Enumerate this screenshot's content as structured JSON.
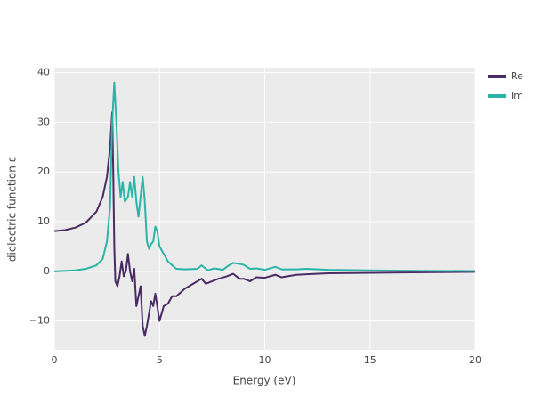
{
  "chart_data": {
    "type": "line",
    "xlabel": "Energy (eV)",
    "ylabel": "dielectric function ε",
    "xlim": [
      0,
      20
    ],
    "ylim": [
      -15.8,
      41
    ],
    "xticks": [
      0,
      5,
      10,
      15,
      20
    ],
    "yticks": [
      {
        "value": -10,
        "label": "−10"
      },
      0,
      10,
      20,
      30,
      40
    ],
    "grid": true,
    "legend": "top-right-outside",
    "series": [
      {
        "name": "Re",
        "color": "#4a2b63",
        "x": [
          0,
          0.5,
          1,
          1.5,
          2,
          2.3,
          2.5,
          2.65,
          2.75,
          2.8,
          2.85,
          2.9,
          3.0,
          3.1,
          3.2,
          3.3,
          3.4,
          3.5,
          3.6,
          3.7,
          3.8,
          3.9,
          4.0,
          4.1,
          4.2,
          4.3,
          4.4,
          4.6,
          4.7,
          4.8,
          5.0,
          5.2,
          5.4,
          5.6,
          5.8,
          6.2,
          6.6,
          7.0,
          7.2,
          7.5,
          7.8,
          8.2,
          8.5,
          8.8,
          9.0,
          9.3,
          9.6,
          10,
          10.5,
          10.8,
          11.5,
          12,
          13,
          15,
          17,
          20
        ],
        "values": [
          8.1,
          8.3,
          8.8,
          9.8,
          12,
          15,
          19,
          25,
          32,
          20,
          5,
          -2,
          -3,
          -1,
          2,
          -1,
          0,
          3.5,
          0,
          -2,
          0.5,
          -7,
          -5,
          -3,
          -11,
          -13,
          -11,
          -6,
          -7,
          -4.5,
          -10,
          -7,
          -6.5,
          -5,
          -5,
          -3.5,
          -2.5,
          -1.5,
          -2.5,
          -2,
          -1.5,
          -1,
          -0.5,
          -1.5,
          -1.5,
          -2,
          -1.2,
          -1.3,
          -0.7,
          -1.2,
          -0.7,
          -0.6,
          -0.4,
          -0.3,
          -0.2,
          -0.1
        ]
      },
      {
        "name": "Im",
        "color": "#2bb5a8",
        "x": [
          0,
          1,
          1.5,
          2,
          2.3,
          2.5,
          2.65,
          2.75,
          2.85,
          2.95,
          3.05,
          3.15,
          3.25,
          3.35,
          3.5,
          3.6,
          3.7,
          3.8,
          3.9,
          4.0,
          4.1,
          4.2,
          4.3,
          4.4,
          4.5,
          4.6,
          4.7,
          4.8,
          4.9,
          5.0,
          5.2,
          5.4,
          5.6,
          5.8,
          6.2,
          6.8,
          7.0,
          7.3,
          7.6,
          8.0,
          8.3,
          8.5,
          8.8,
          9.0,
          9.3,
          9.6,
          10,
          10.5,
          10.8,
          11.5,
          12,
          13,
          15,
          17,
          20
        ],
        "values": [
          0,
          0.2,
          0.5,
          1.2,
          2.5,
          6,
          13,
          30,
          38,
          30,
          20,
          15,
          18,
          14,
          15,
          18,
          15,
          19,
          14,
          11,
          15,
          19,
          14,
          6,
          4.5,
          5.5,
          6,
          9,
          8,
          5,
          3.5,
          2,
          1.2,
          0.5,
          0.4,
          0.5,
          1.2,
          0.2,
          0.6,
          0.3,
          1.2,
          1.7,
          1.5,
          1.3,
          0.5,
          0.6,
          0.3,
          0.9,
          0.4,
          0.4,
          0.5,
          0.3,
          0.2,
          0.1,
          0.05
        ]
      }
    ]
  }
}
